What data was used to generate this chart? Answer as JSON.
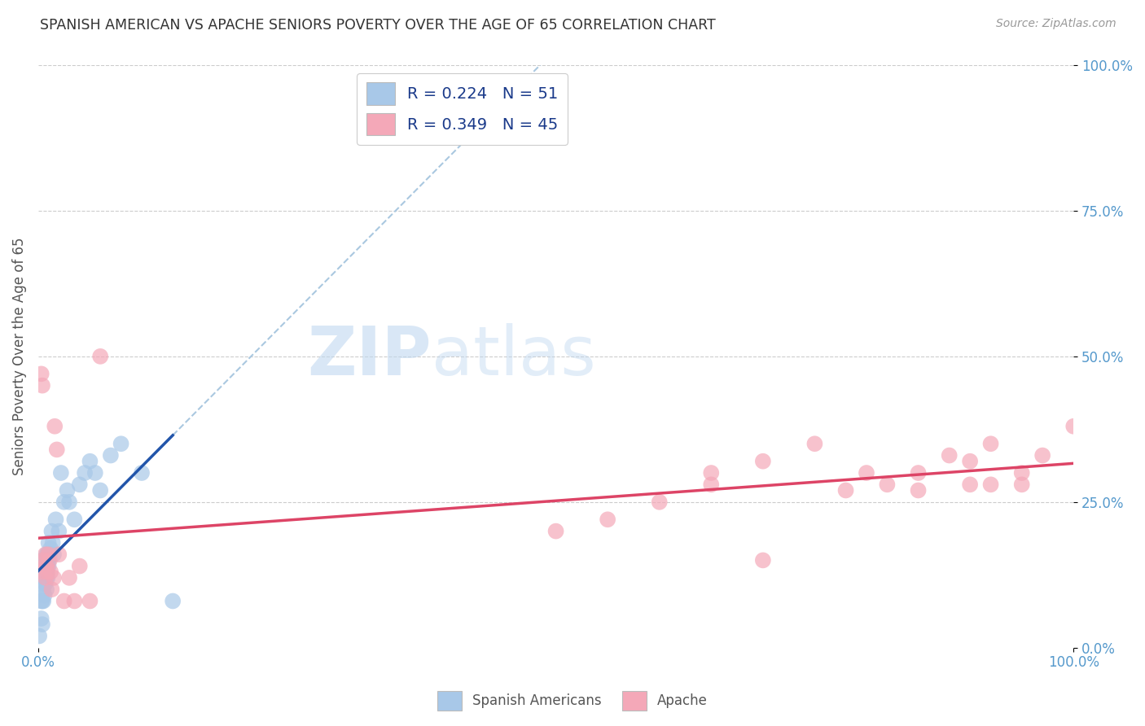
{
  "title": "SPANISH AMERICAN VS APACHE SENIORS POVERTY OVER THE AGE OF 65 CORRELATION CHART",
  "source": "Source: ZipAtlas.com",
  "ylabel": "Seniors Poverty Over the Age of 65",
  "r_blue": 0.224,
  "n_blue": 51,
  "r_pink": 0.349,
  "n_pink": 45,
  "blue_color": "#a8c8e8",
  "pink_color": "#f4a8b8",
  "blue_line_color": "#2255aa",
  "pink_line_color": "#dd4466",
  "dashed_line_color": "#aac8e0",
  "background_color": "#ffffff",
  "grid_color": "#cccccc",
  "title_color": "#333333",
  "source_color": "#999999",
  "legend_label_color": "#1a3a8a",
  "axis_tick_color": "#5599cc",
  "blue_x": [
    0.001,
    0.002,
    0.003,
    0.003,
    0.004,
    0.004,
    0.004,
    0.005,
    0.005,
    0.005,
    0.005,
    0.006,
    0.006,
    0.006,
    0.006,
    0.007,
    0.007,
    0.007,
    0.007,
    0.007,
    0.008,
    0.008,
    0.008,
    0.008,
    0.009,
    0.009,
    0.009,
    0.01,
    0.01,
    0.01,
    0.011,
    0.012,
    0.013,
    0.014,
    0.015,
    0.017,
    0.02,
    0.022,
    0.025,
    0.028,
    0.03,
    0.035,
    0.04,
    0.045,
    0.05,
    0.055,
    0.06,
    0.07,
    0.08,
    0.1,
    0.13
  ],
  "blue_y": [
    0.02,
    0.13,
    0.05,
    0.08,
    0.15,
    0.08,
    0.04,
    0.12,
    0.1,
    0.08,
    0.14,
    0.13,
    0.11,
    0.09,
    0.14,
    0.12,
    0.13,
    0.11,
    0.15,
    0.14,
    0.13,
    0.12,
    0.1,
    0.16,
    0.12,
    0.14,
    0.16,
    0.14,
    0.15,
    0.18,
    0.16,
    0.17,
    0.2,
    0.18,
    0.16,
    0.22,
    0.2,
    0.3,
    0.25,
    0.27,
    0.25,
    0.22,
    0.28,
    0.3,
    0.32,
    0.3,
    0.27,
    0.33,
    0.35,
    0.3,
    0.08
  ],
  "pink_x": [
    0.003,
    0.004,
    0.004,
    0.005,
    0.006,
    0.007,
    0.007,
    0.008,
    0.009,
    0.01,
    0.011,
    0.012,
    0.013,
    0.015,
    0.016,
    0.018,
    0.02,
    0.025,
    0.03,
    0.035,
    0.04,
    0.05,
    0.06,
    0.5,
    0.55,
    0.6,
    0.65,
    0.65,
    0.7,
    0.7,
    0.75,
    0.78,
    0.8,
    0.82,
    0.85,
    0.85,
    0.88,
    0.9,
    0.9,
    0.92,
    0.92,
    0.95,
    0.95,
    0.97,
    1.0
  ],
  "pink_y": [
    0.47,
    0.45,
    0.13,
    0.15,
    0.14,
    0.16,
    0.12,
    0.14,
    0.13,
    0.16,
    0.15,
    0.13,
    0.1,
    0.12,
    0.38,
    0.34,
    0.16,
    0.08,
    0.12,
    0.08,
    0.14,
    0.08,
    0.5,
    0.2,
    0.22,
    0.25,
    0.3,
    0.28,
    0.15,
    0.32,
    0.35,
    0.27,
    0.3,
    0.28,
    0.27,
    0.3,
    0.33,
    0.28,
    0.32,
    0.35,
    0.28,
    0.3,
    0.28,
    0.33,
    0.38
  ],
  "xlim": [
    0.0,
    1.0
  ],
  "ylim": [
    0.0,
    1.0
  ],
  "ytick_positions": [
    0.0,
    0.25,
    0.5,
    0.75,
    1.0
  ],
  "ytick_labels": [
    "0.0%",
    "25.0%",
    "50.0%",
    "75.0%",
    "100.0%"
  ],
  "xtick_positions": [
    0.0,
    1.0
  ],
  "xtick_labels": [
    "0.0%",
    "100.0%"
  ],
  "hline_positions": [
    0.25,
    0.5,
    0.75,
    1.0
  ]
}
